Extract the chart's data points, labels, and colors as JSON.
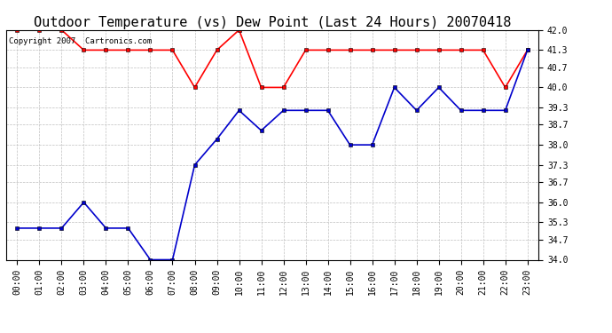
{
  "title": "Outdoor Temperature (vs) Dew Point (Last 24 Hours) 20070418",
  "copyright_text": "Copyright 2007  Cartronics.com",
  "hours": [
    "00:00",
    "01:00",
    "02:00",
    "03:00",
    "04:00",
    "05:00",
    "06:00",
    "07:00",
    "08:00",
    "09:00",
    "10:00",
    "11:00",
    "12:00",
    "13:00",
    "14:00",
    "15:00",
    "16:00",
    "17:00",
    "18:00",
    "19:00",
    "20:00",
    "21:00",
    "22:00",
    "23:00"
  ],
  "temp_data": [
    42.0,
    42.0,
    42.0,
    41.3,
    41.3,
    41.3,
    41.3,
    41.3,
    40.0,
    41.3,
    42.0,
    40.0,
    40.0,
    41.3,
    41.3,
    41.3,
    41.3,
    41.3,
    41.3,
    41.3,
    41.3,
    41.3,
    40.0,
    41.3
  ],
  "dew_data": [
    35.1,
    35.1,
    35.1,
    36.0,
    35.1,
    35.1,
    34.0,
    34.0,
    37.3,
    38.2,
    39.2,
    38.5,
    39.2,
    39.2,
    39.2,
    38.0,
    38.0,
    40.0,
    39.2,
    40.0,
    39.2,
    39.2,
    39.2,
    41.3
  ],
  "temp_color": "#ff0000",
  "dew_color": "#0000cc",
  "bg_color": "#ffffff",
  "plot_bg_color": "#ffffff",
  "grid_color": "#c0c0c0",
  "ylim_min": 34.0,
  "ylim_max": 42.0,
  "yticks": [
    34.0,
    34.7,
    35.3,
    36.0,
    36.7,
    37.3,
    38.0,
    38.7,
    39.3,
    40.0,
    40.7,
    41.3,
    42.0
  ],
  "title_fontsize": 11,
  "tick_fontsize": 7,
  "copyright_fontsize": 6.5,
  "linewidth": 1.2,
  "marker": "s",
  "markersize": 2.5
}
